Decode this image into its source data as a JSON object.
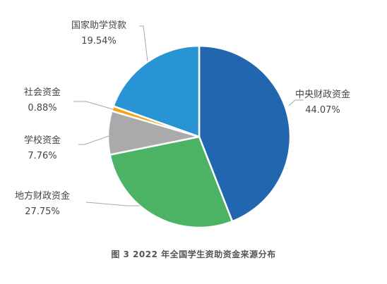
{
  "chart_data": {
    "type": "pie",
    "caption": "图 3  2022 年全国学生资助资金来源分布",
    "unit": "%",
    "slices": [
      {
        "name": "中央财政资金",
        "value": 44.07,
        "value_label": "44.07%",
        "color": "#2266b0"
      },
      {
        "name": "地方财政资金",
        "value": 27.75,
        "value_label": "27.75%",
        "color": "#4cb264"
      },
      {
        "name": "学校资金",
        "value": 7.76,
        "value_label": "7.76%",
        "color": "#aaaaaa"
      },
      {
        "name": "社会资金",
        "value": 0.88,
        "value_label": "0.88%",
        "color": "#f2a219"
      },
      {
        "name": "国家助学贷款",
        "value": 19.54,
        "value_label": "19.54%",
        "color": "#2894d3"
      }
    ]
  }
}
